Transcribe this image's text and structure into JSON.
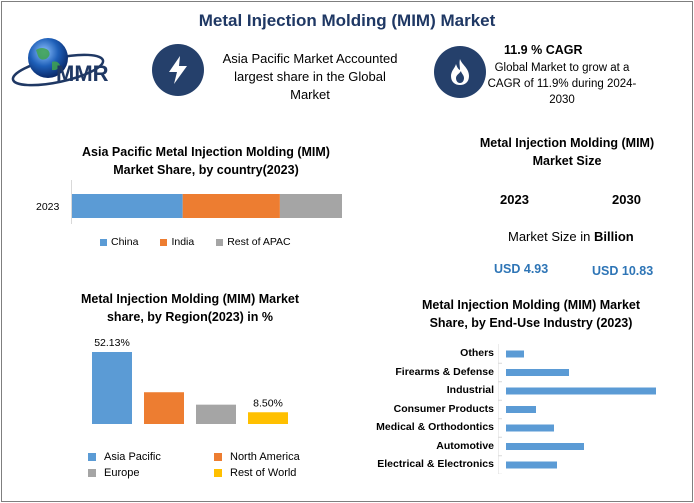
{
  "title": "Metal Injection Molding (MIM) Market",
  "logo_text": "MMR",
  "highlight": {
    "text_line1": "Asia Pacific Market Accounted",
    "text_line2": "largest share in the Global",
    "text_line3": "Market",
    "icon": "lightning-bolt-icon"
  },
  "cagr": {
    "title": "11.9 % CAGR",
    "line1": "Global Market to grow at a",
    "line2": "CAGR of 11.9% during 2024-",
    "line3": "2030",
    "icon": "flame-icon"
  },
  "colors": {
    "navy": "#25406b",
    "title": "#1f3864",
    "blue": "#5b9bd5",
    "orange": "#ed7d31",
    "gray": "#a5a5a5",
    "gold": "#ffc000",
    "value_blue": "#2e75b6"
  },
  "market_size": {
    "title_line1": "Metal Injection Molding (MIM)",
    "title_line2": "Market Size",
    "year_a": "2023",
    "year_b": "2030",
    "unit_prefix": "Market Size in ",
    "unit_bold": "Billion",
    "value_a": "USD 4.93",
    "value_b": "USD 10.83"
  },
  "chart_data": [
    {
      "type": "bar",
      "orientation": "horizontal-stacked",
      "title_line1": "Asia Pacific Metal Injection Molding (MIM)",
      "title_line2": "Market Share, by country(2023)",
      "categories": [
        "2023"
      ],
      "series": [
        {
          "name": "China",
          "values": [
            41
          ]
        },
        {
          "name": "India",
          "values": [
            36
          ]
        },
        {
          "name": "Rest of APAC",
          "values": [
            23
          ]
        }
      ]
    },
    {
      "type": "bar",
      "title_line1": "Metal Injection Molding (MIM) Market",
      "title_line2": "share, by Region(2023) in %",
      "categories": [
        "Asia Pacific",
        "North America",
        "Europe",
        "Rest of World"
      ],
      "values": [
        52.13,
        23,
        14,
        8.5
      ],
      "data_labels": [
        "52.13%",
        "",
        "",
        "8.50%"
      ],
      "legend": [
        "Asia Pacific",
        "North America",
        "Europe",
        "Rest of World"
      ]
    },
    {
      "type": "bar",
      "orientation": "horizontal",
      "title_line1": "Metal Injection Molding (MIM) Market",
      "title_line2": "Share, by End-Use Industry (2023)",
      "categories": [
        "Others",
        "Firearms & Defense",
        "Industrial",
        "Consumer Products",
        "Medical & Orthodontics",
        "Automotive",
        "Electrical & Electronics"
      ],
      "values": [
        6,
        21,
        50,
        10,
        16,
        26,
        17
      ]
    }
  ]
}
